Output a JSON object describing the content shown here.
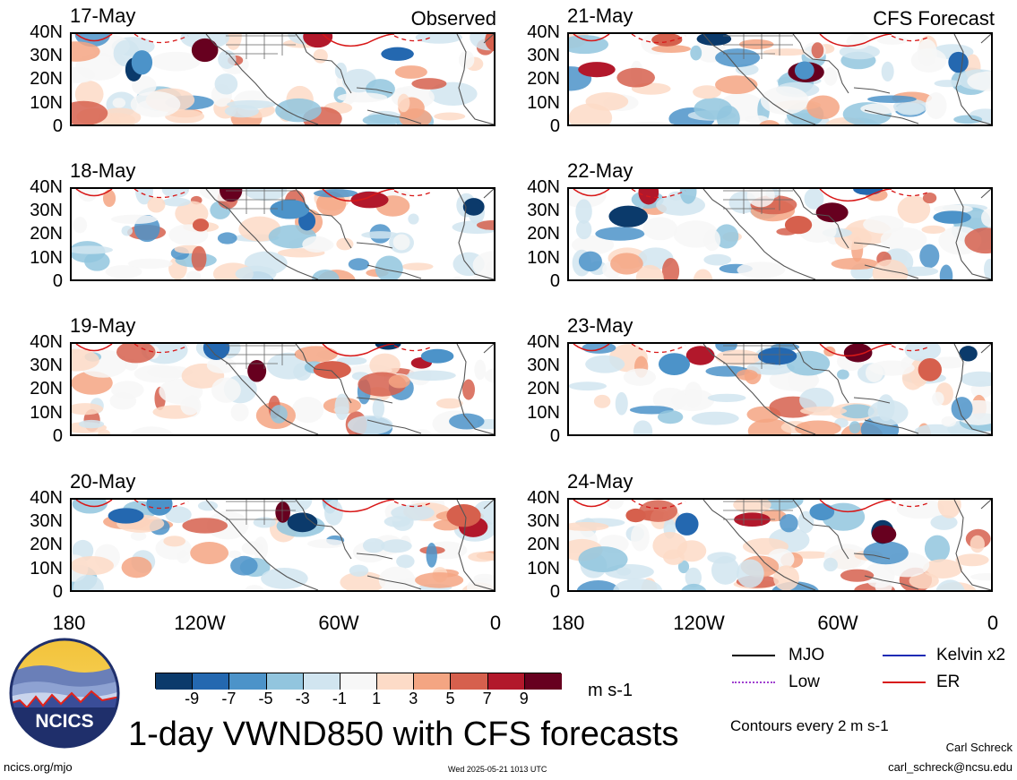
{
  "header": {
    "left_tag": "Observed",
    "right_tag": "CFS Forecast"
  },
  "lat_ticks": [
    "40N",
    "30N",
    "20N",
    "10N",
    "0"
  ],
  "lon_ticks": [
    "180",
    "120W",
    "60W",
    "0"
  ],
  "panels": [
    {
      "date": "17-May",
      "kind": "observed"
    },
    {
      "date": "18-May",
      "kind": "observed"
    },
    {
      "date": "19-May",
      "kind": "observed"
    },
    {
      "date": "20-May",
      "kind": "observed"
    },
    {
      "date": "21-May",
      "kind": "forecast"
    },
    {
      "date": "22-May",
      "kind": "forecast"
    },
    {
      "date": "23-May",
      "kind": "forecast"
    },
    {
      "date": "24-May",
      "kind": "forecast"
    }
  ],
  "colorbar": {
    "labels": [
      "-9",
      "-7",
      "-5",
      "-3",
      "-1",
      "1",
      "3",
      "5",
      "7",
      "9"
    ],
    "colors": [
      "#0b3a6b",
      "#2468b0",
      "#4c93c9",
      "#92c5de",
      "#d1e5f0",
      "#f7f7f7",
      "#fddbc7",
      "#f4a582",
      "#d6604d",
      "#b2182b",
      "#67001f"
    ],
    "units": "m s-1"
  },
  "legend": {
    "items": [
      {
        "label": "MJO",
        "color": "#000000",
        "style": "solid"
      },
      {
        "label": "Kelvin x2",
        "color": "#1e2bb5",
        "style": "solid"
      },
      {
        "label": "Low",
        "color": "#a040d0",
        "style": "dotted"
      },
      {
        "label": "ER",
        "color": "#d81818",
        "style": "solid"
      }
    ],
    "contour_note": "Contours every 2 m s-1"
  },
  "title": "1-day VWND850 with CFS forecasts",
  "footer": {
    "url": "ncics.org/mjo",
    "timestamp": "Wed 2025-05-21 1013 UTC",
    "author": "Carl Schreck",
    "email": "carl_schreck@ncsu.edu"
  },
  "logo": {
    "text": "NCICS"
  }
}
